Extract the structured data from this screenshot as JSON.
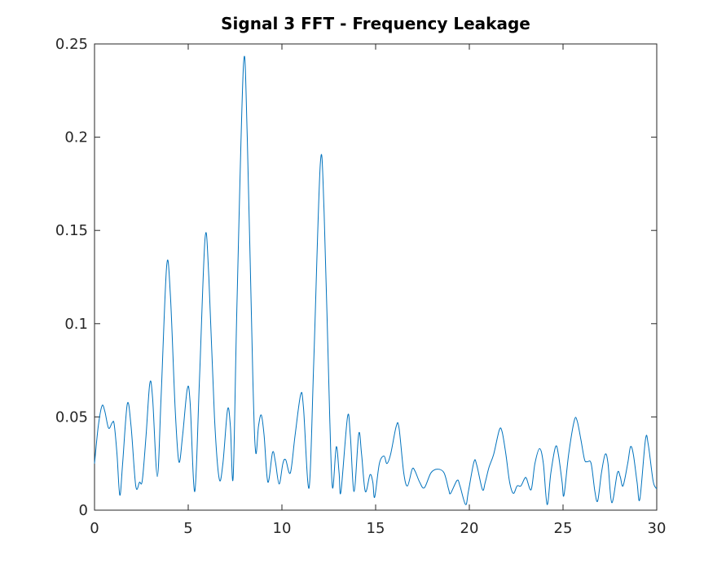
{
  "chart_data": {
    "type": "line",
    "title": "Signal 3 FFT - Frequency Leakage",
    "x": [
      0,
      0.2,
      0.4,
      0.55,
      0.75,
      0.95,
      1.05,
      1.2,
      1.35,
      1.5,
      1.75,
      1.95,
      2.2,
      2.4,
      2.55,
      2.75,
      2.95,
      3.1,
      3.35,
      3.55,
      3.85,
      4.05,
      4.3,
      4.5,
      4.7,
      4.95,
      5.1,
      5.35,
      5.6,
      5.9,
      6.1,
      6.4,
      6.65,
      6.85,
      7.1,
      7.25,
      7.4,
      7.6,
      7.95,
      8.15,
      8.45,
      8.6,
      8.75,
      8.9,
      9.05,
      9.25,
      9.5,
      9.65,
      9.85,
      10.05,
      10.2,
      10.45,
      10.7,
      11,
      11.15,
      11.45,
      11.7,
      12.05,
      12.25,
      12.55,
      12.7,
      12.9,
      13.05,
      13.15,
      13.5,
      13.65,
      13.85,
      14.1,
      14.25,
      14.45,
      14.7,
      14.85,
      14.95,
      15.2,
      15.45,
      15.6,
      15.8,
      16.1,
      16.25,
      16.5,
      16.7,
      16.95,
      17.1,
      17.35,
      17.6,
      17.95,
      18.3,
      18.65,
      18.9,
      19,
      19.35,
      19.5,
      19.8,
      19.95,
      20.25,
      20.4,
      20.7,
      20.85,
      21.05,
      21.3,
      21.6,
      21.75,
      21.95,
      22.15,
      22.35,
      22.55,
      22.75,
      22.95,
      23.05,
      23.3,
      23.5,
      23.75,
      23.95,
      24.15,
      24.35,
      24.6,
      24.75,
      24.95,
      25.05,
      25.3,
      25.6,
      25.75,
      25.95,
      26.15,
      26.3,
      26.5,
      26.7,
      26.85,
      27.05,
      27.25,
      27.4,
      27.6,
      27.9,
      28.05,
      28.2,
      28.45,
      28.6,
      28.75,
      28.95,
      29.1,
      29.4,
      29.55,
      29.8,
      29.95,
      30
    ],
    "series": [
      {
        "color": "#0072bd",
        "values": [
          0.025,
          0.045,
          0.056,
          0.053,
          0.044,
          0.047,
          0.046,
          0.03,
          0.008,
          0.025,
          0.057,
          0.045,
          0.013,
          0.015,
          0.016,
          0.04,
          0.068,
          0.06,
          0.018,
          0.06,
          0.131,
          0.115,
          0.055,
          0.026,
          0.04,
          0.065,
          0.058,
          0.01,
          0.07,
          0.146,
          0.125,
          0.05,
          0.017,
          0.025,
          0.054,
          0.045,
          0.018,
          0.11,
          0.239,
          0.2,
          0.07,
          0.031,
          0.045,
          0.051,
          0.04,
          0.015,
          0.031,
          0.026,
          0.014,
          0.025,
          0.027,
          0.02,
          0.04,
          0.062,
          0.055,
          0.012,
          0.08,
          0.186,
          0.16,
          0.05,
          0.012,
          0.034,
          0.02,
          0.01,
          0.05,
          0.04,
          0.01,
          0.041,
          0.03,
          0.01,
          0.019,
          0.015,
          0.007,
          0.025,
          0.029,
          0.025,
          0.03,
          0.045,
          0.044,
          0.02,
          0.013,
          0.022,
          0.021,
          0.015,
          0.012,
          0.02,
          0.022,
          0.02,
          0.011,
          0.009,
          0.016,
          0.013,
          0.003,
          0.01,
          0.026,
          0.024,
          0.011,
          0.015,
          0.023,
          0.03,
          0.043,
          0.042,
          0.03,
          0.015,
          0.009,
          0.013,
          0.013,
          0.017,
          0.017,
          0.011,
          0.025,
          0.033,
          0.025,
          0.003,
          0.02,
          0.034,
          0.03,
          0.015,
          0.008,
          0.03,
          0.048,
          0.048,
          0.038,
          0.027,
          0.026,
          0.025,
          0.01,
          0.005,
          0.02,
          0.03,
          0.025,
          0.004,
          0.02,
          0.018,
          0.013,
          0.025,
          0.034,
          0.03,
          0.015,
          0.006,
          0.038,
          0.035,
          0.016,
          0.012,
          0.012
        ]
      }
    ],
    "xlim": [
      0,
      30
    ],
    "xticks": [
      0,
      5,
      10,
      15,
      20,
      25,
      30
    ],
    "ylim": [
      0,
      0.25
    ],
    "yticks": [
      0,
      0.05,
      0.1,
      0.15,
      0.2,
      0.25
    ],
    "grid": false
  }
}
